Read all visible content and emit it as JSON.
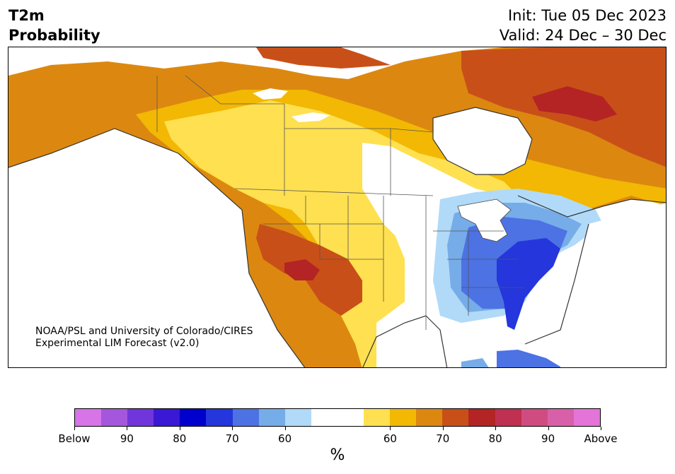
{
  "header": {
    "title_line1": "T2m",
    "title_line2": "Probability",
    "init": "Init: Tue 05 Dec 2023",
    "valid": "Valid: 24 Dec – 30 Dec"
  },
  "map": {
    "credit_line1": "NOAA/PSL and University of Colorado/CIRES",
    "credit_line2": "Experimental LIM Forecast (v2.0)"
  },
  "colorbar": {
    "colors": [
      "#d674e8",
      "#a456dc",
      "#7036dc",
      "#3a18d4",
      "#0000cc",
      "#2436dc",
      "#4c72e4",
      "#76ace8",
      "#b0daf8",
      "#ffffff",
      "#ffffff",
      "#ffe050",
      "#f2b804",
      "#dc8810",
      "#c85018",
      "#b42424",
      "#c03050",
      "#d04c80",
      "#d860a8",
      "#e474d8"
    ],
    "labels": [
      "Below",
      "90",
      "80",
      "70",
      "60",
      "60",
      "70",
      "80",
      "90",
      "Above"
    ],
    "unit": "%"
  }
}
